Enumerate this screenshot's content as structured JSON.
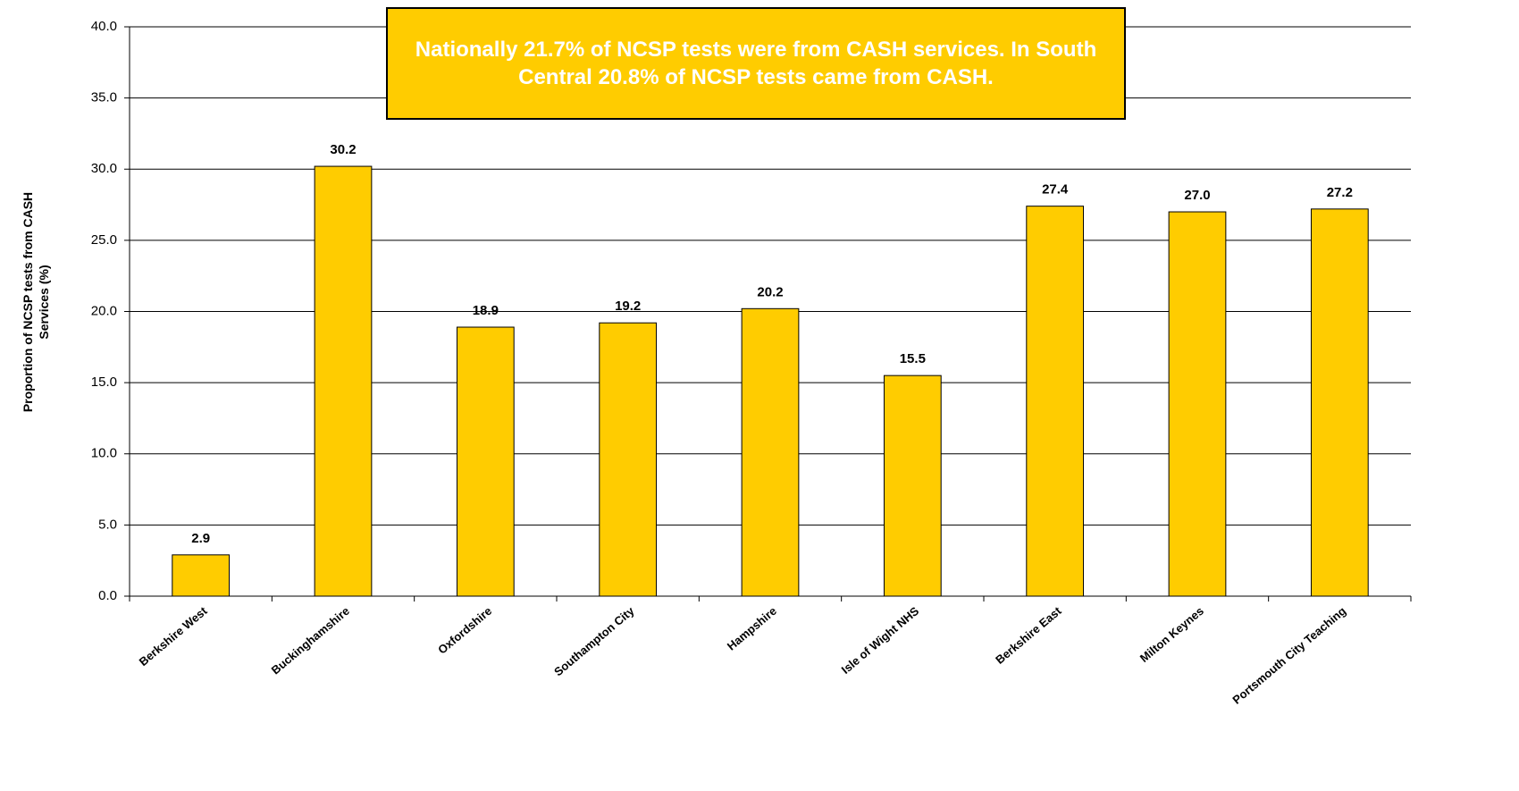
{
  "chart_data": {
    "type": "bar",
    "annotation": "Nationally 21.7% of NCSP tests were from CASH services. In South Central  20.8% of NCSP tests came from CASH.",
    "ylabel": "Proportion of NCSP tests from CASH Services (%)",
    "categories": [
      "Berkshire West",
      "Buckinghamshire",
      "Oxfordshire",
      "Southampton City",
      "Hampshire",
      "Isle of Wight NHS",
      "Berkshire East",
      "Milton Keynes",
      "Portsmouth City Teaching"
    ],
    "values": [
      2.9,
      30.2,
      18.9,
      19.2,
      20.2,
      15.5,
      27.4,
      27.0,
      27.2
    ],
    "value_labels": [
      "2.9",
      "30.2",
      "18.9",
      "19.2",
      "20.2",
      "15.5",
      "27.4",
      "27.0",
      "27.2"
    ],
    "color": "#FFCC00",
    "ylim": [
      0,
      40
    ],
    "yticks": [
      {
        "value": 0,
        "label": "0.0"
      },
      {
        "value": 5,
        "label": "5.0"
      },
      {
        "value": 10,
        "label": "10.0"
      },
      {
        "value": 15,
        "label": "15.0"
      },
      {
        "value": 20,
        "label": "20.0"
      },
      {
        "value": 25,
        "label": "25.0"
      },
      {
        "value": 30,
        "label": "30.0"
      },
      {
        "value": 35,
        "label": "35.0"
      },
      {
        "value": 40,
        "label": "40.0"
      }
    ],
    "grid": true
  }
}
